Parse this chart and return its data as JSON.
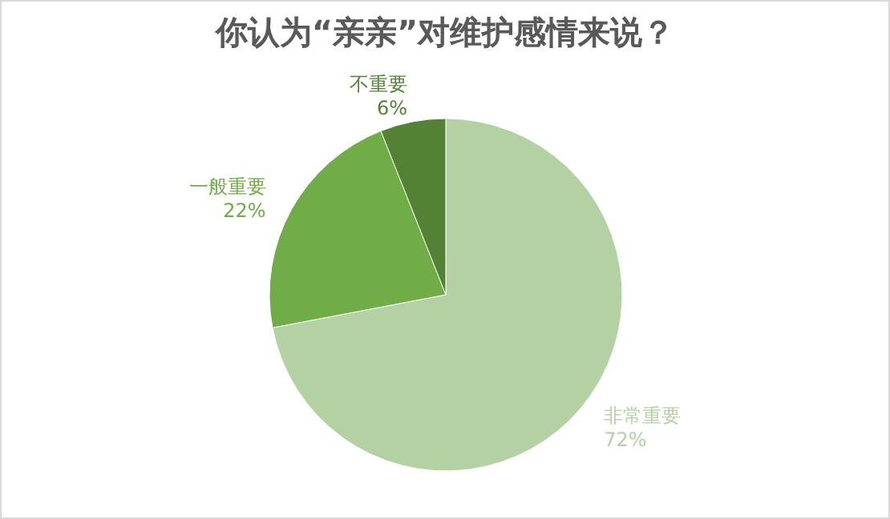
{
  "chart_data": {
    "type": "pie",
    "title": "你认为“亲亲”对维护感情来说？",
    "categories": [
      "非常重要",
      "一般重要",
      "不重要"
    ],
    "values": [
      72,
      22,
      6
    ],
    "value_labels": [
      "72%",
      "22%",
      "6%"
    ],
    "colors": [
      "#b4d1a4",
      "#70ad47",
      "#548235"
    ],
    "legend": false
  }
}
